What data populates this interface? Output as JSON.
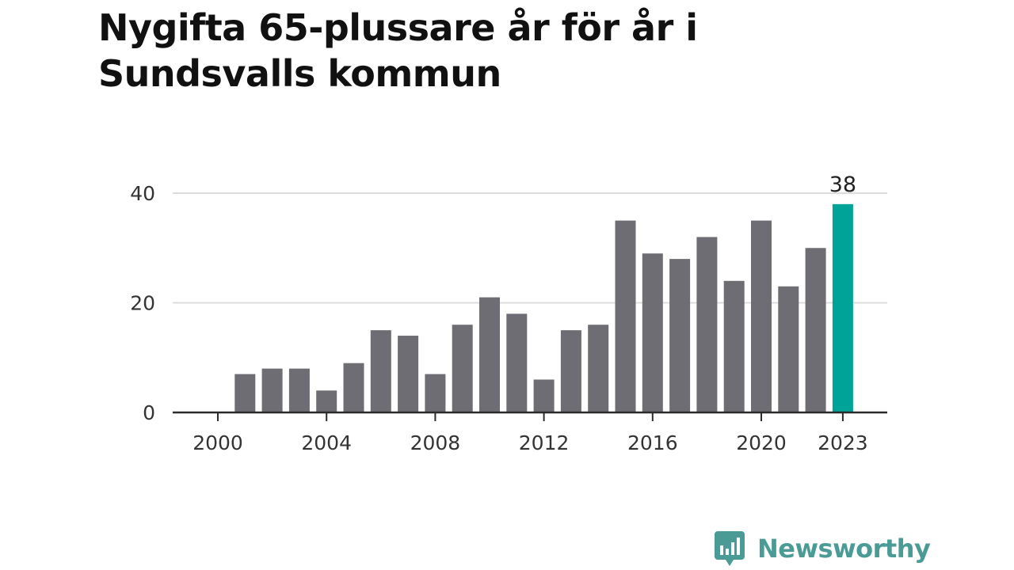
{
  "title": "Nygifta 65-plussare år för år i Sundsvalls kommun",
  "brand": {
    "name": "Newsworthy",
    "icon": "newsworthy-chart-icon"
  },
  "colors": {
    "bar": "#6e6d73",
    "highlight": "#00a398",
    "grid": "#dcdcdc",
    "axis": "#2b2b2b",
    "text": "#333333",
    "brand": "#4a9b95"
  },
  "chart_data": {
    "type": "bar",
    "title": "Nygifta 65-plussare år för år i Sundsvalls kommun",
    "xlabel": "",
    "ylabel": "",
    "x": [
      2000,
      2001,
      2002,
      2003,
      2004,
      2005,
      2006,
      2007,
      2008,
      2009,
      2010,
      2011,
      2012,
      2013,
      2014,
      2015,
      2016,
      2017,
      2018,
      2019,
      2020,
      2021,
      2022,
      2023
    ],
    "values": [
      0,
      7,
      8,
      8,
      4,
      9,
      15,
      14,
      7,
      16,
      21,
      18,
      6,
      15,
      16,
      35,
      29,
      28,
      32,
      24,
      35,
      23,
      30,
      38
    ],
    "ylim": [
      0,
      40
    ],
    "yticks": [
      0,
      20,
      40
    ],
    "xticks": [
      "2000",
      "2004",
      "2008",
      "2012",
      "2016",
      "2020",
      "2023"
    ],
    "highlight": {
      "x": 2023,
      "label": "38"
    },
    "grid": true
  }
}
